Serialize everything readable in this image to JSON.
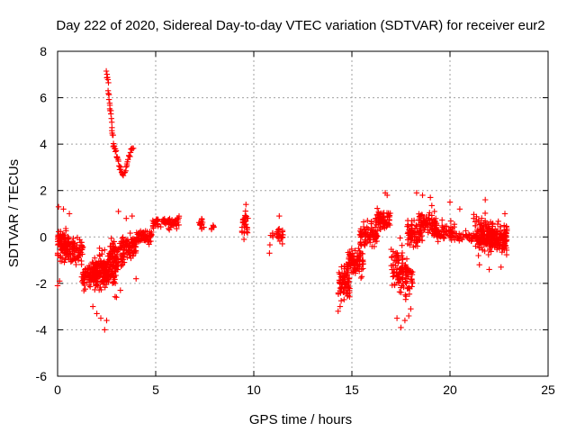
{
  "chart_data": {
    "type": "scatter",
    "title": "Day 222 of 2020, Sidereal Day-to-day VTEC variation (SDTVAR) for receiver eur2",
    "xlabel": "GPS time / hours",
    "ylabel": "SDTVAR / TECUs",
    "xlim": [
      0,
      25
    ],
    "ylim": [
      -6,
      8
    ],
    "xticks": [
      0,
      5,
      10,
      15,
      20,
      25
    ],
    "yticks": [
      -6,
      -4,
      -2,
      0,
      2,
      4,
      6,
      8
    ],
    "grid": true,
    "marker": "+",
    "color": "#ff0000",
    "clusters": [
      {
        "x0": 0.0,
        "x1": 0.6,
        "center": -0.3,
        "spread": 1.0,
        "n": 90
      },
      {
        "x0": 0.4,
        "x1": 1.3,
        "center": -0.6,
        "spread": 0.9,
        "n": 80
      },
      {
        "x0": 1.2,
        "x1": 2.0,
        "center": -1.7,
        "spread": 0.8,
        "n": 80
      },
      {
        "x0": 1.8,
        "x1": 2.6,
        "center": -1.5,
        "spread": 1.2,
        "n": 110
      },
      {
        "x0": 2.3,
        "x1": 3.0,
        "center": -1.5,
        "spread": 1.4,
        "n": 90
      },
      {
        "x0": 2.6,
        "x1": 3.4,
        "center": -0.8,
        "spread": 0.9,
        "n": 80
      },
      {
        "x0": 3.2,
        "x1": 4.0,
        "center": -0.4,
        "spread": 0.8,
        "n": 80
      },
      {
        "x0": 4.0,
        "x1": 4.8,
        "center": 0.0,
        "spread": 0.5,
        "n": 60
      },
      {
        "x0": 4.8,
        "x1": 6.2,
        "center": 0.6,
        "spread": 0.4,
        "n": 80
      },
      {
        "x0": 7.2,
        "x1": 7.5,
        "center": 0.6,
        "spread": 0.5,
        "n": 16
      },
      {
        "x0": 7.8,
        "x1": 8.0,
        "center": 0.4,
        "spread": 0.2,
        "n": 6
      },
      {
        "x0": 9.4,
        "x1": 9.7,
        "center": 0.6,
        "spread": 0.7,
        "n": 30
      },
      {
        "x0": 10.8,
        "x1": 11.0,
        "center": -0.1,
        "spread": 0.5,
        "n": 6
      },
      {
        "x0": 11.1,
        "x1": 11.5,
        "center": 0.1,
        "spread": 0.6,
        "n": 22
      },
      {
        "x0": 14.3,
        "x1": 14.9,
        "center": -1.9,
        "spread": 1.1,
        "n": 80
      },
      {
        "x0": 14.8,
        "x1": 15.6,
        "center": -1.0,
        "spread": 1.1,
        "n": 90
      },
      {
        "x0": 15.4,
        "x1": 16.3,
        "center": 0.1,
        "spread": 0.9,
        "n": 80
      },
      {
        "x0": 16.2,
        "x1": 17.0,
        "center": 0.7,
        "spread": 0.8,
        "n": 70
      },
      {
        "x0": 17.0,
        "x1": 17.6,
        "center": -1.3,
        "spread": 1.5,
        "n": 60
      },
      {
        "x0": 17.4,
        "x1": 18.1,
        "center": -1.8,
        "spread": 1.5,
        "n": 60
      },
      {
        "x0": 17.8,
        "x1": 18.6,
        "center": 0.1,
        "spread": 1.0,
        "n": 70
      },
      {
        "x0": 18.4,
        "x1": 19.3,
        "center": 0.6,
        "spread": 0.9,
        "n": 80
      },
      {
        "x0": 19.2,
        "x1": 20.3,
        "center": 0.2,
        "spread": 0.7,
        "n": 70
      },
      {
        "x0": 20.3,
        "x1": 21.2,
        "center": 0.0,
        "spread": 0.4,
        "n": 30
      },
      {
        "x0": 21.2,
        "x1": 22.2,
        "center": 0.1,
        "spread": 1.1,
        "n": 140
      },
      {
        "x0": 22.0,
        "x1": 22.9,
        "center": -0.1,
        "spread": 1.1,
        "n": 130
      }
    ],
    "lines": [
      {
        "x0": 2.5,
        "y0": 7.2,
        "x1": 2.85,
        "y1": 4.0,
        "n": 24,
        "jitter": 0.12
      },
      {
        "x0": 2.85,
        "y0": 4.0,
        "x1": 3.3,
        "y1": 2.6,
        "n": 18,
        "jitter": 0.12
      },
      {
        "x0": 3.3,
        "y0": 2.6,
        "x1": 3.85,
        "y1": 3.9,
        "n": 18,
        "jitter": 0.12
      }
    ],
    "points": [
      [
        0.0,
        -2.1
      ],
      [
        0.05,
        1.3
      ],
      [
        0.1,
        -1.9
      ],
      [
        0.3,
        1.2
      ],
      [
        0.6,
        1.0
      ],
      [
        2.4,
        -4.0
      ],
      [
        2.2,
        -3.5
      ],
      [
        2.0,
        -3.3
      ],
      [
        1.8,
        -3.0
      ],
      [
        2.5,
        -3.6
      ],
      [
        3.0,
        -2.6
      ],
      [
        3.2,
        -2.3
      ],
      [
        4.0,
        -1.8
      ],
      [
        3.1,
        1.1
      ],
      [
        3.5,
        0.8
      ],
      [
        3.8,
        0.9
      ],
      [
        10.8,
        -0.7
      ],
      [
        11.3,
        0.9
      ],
      [
        9.6,
        1.4
      ],
      [
        9.5,
        -0.1
      ],
      [
        14.3,
        -3.2
      ],
      [
        14.4,
        -3.0
      ],
      [
        14.6,
        -2.7
      ],
      [
        16.7,
        1.9
      ],
      [
        16.8,
        1.8
      ],
      [
        17.3,
        -3.5
      ],
      [
        17.5,
        -3.9
      ],
      [
        17.9,
        -3.4
      ],
      [
        17.7,
        -3.6
      ],
      [
        18.0,
        -3.1
      ],
      [
        18.3,
        1.9
      ],
      [
        18.6,
        1.8
      ],
      [
        19.0,
        1.7
      ],
      [
        20.0,
        1.5
      ],
      [
        21.8,
        1.6
      ],
      [
        22.0,
        -1.4
      ],
      [
        22.6,
        -1.3
      ],
      [
        21.5,
        -1.2
      ],
      [
        22.8,
        1.0
      ],
      [
        20.5,
        1.2
      ]
    ]
  }
}
